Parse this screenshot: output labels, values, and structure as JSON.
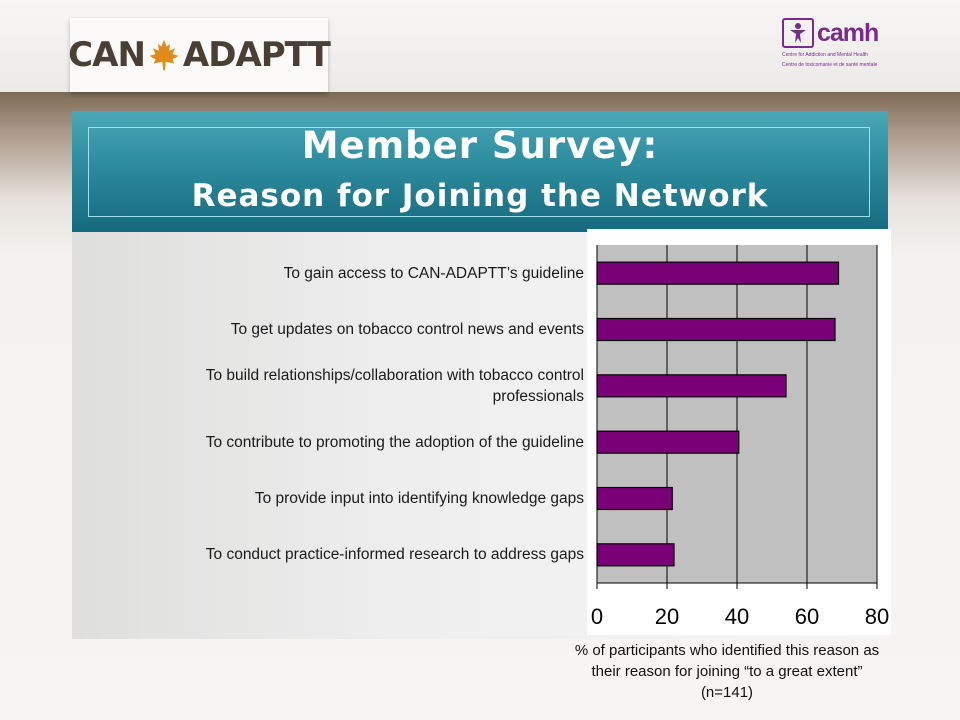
{
  "header": {
    "logo_text_left": "CAN",
    "logo_text_right": "ADAPTT",
    "partner_logo_name": "camh",
    "partner_logo_line1": "Centre for Addiction and Mental Health",
    "partner_logo_line2": "Centre de toxicomanie et de santé mentale"
  },
  "slide": {
    "title_line1": "Member Survey:",
    "title_line2": "Reason for Joining the Network"
  },
  "colors": {
    "bar": "#7a0078",
    "plot_bg": "#c0c0c0",
    "title_bg": "#2f8ea0"
  },
  "chart_data": {
    "type": "bar",
    "orientation": "horizontal",
    "categories": [
      "To gain access to CAN-ADAPTT’s  guideline",
      "To get updates on tobacco control news and events",
      "To build relationships/collaboration with tobacco control professionals",
      "To contribute to promoting the adoption of the guideline",
      "To provide input into identifying knowledge gaps",
      "To conduct practice-informed research to address gaps"
    ],
    "category_lines": [
      [
        "To gain access to CAN-ADAPTT’s  guideline"
      ],
      [
        "To get updates on tobacco control news and events"
      ],
      [
        "To build relationships/collaboration with tobacco control",
        "professionals"
      ],
      [
        "To contribute to promoting the adoption of the guideline"
      ],
      [
        "To provide input into identifying knowledge gaps"
      ],
      [
        "To conduct practice-informed research to address gaps"
      ]
    ],
    "values": [
      69,
      68,
      54,
      40.5,
      21.5,
      22
    ],
    "xlim": [
      0,
      80
    ],
    "xticks": [
      0,
      20,
      40,
      60,
      80
    ],
    "xlabel_lines": [
      "% of participants who identified this reason as",
      "their reason for joining “to a great extent”",
      "(n=141)"
    ],
    "grid": true
  }
}
